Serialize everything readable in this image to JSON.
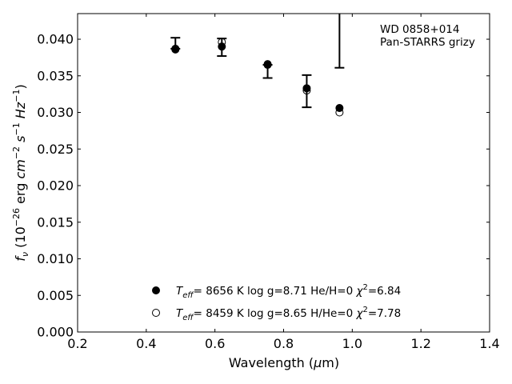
{
  "chart_data": {
    "type": "scatter",
    "annotation": [
      "WD 0858+014",
      "Pan-STARRS grizy"
    ],
    "xlabel": "Wavelength (μm)",
    "ylabel": "f_ν (10^-26 erg cm^-2 s^-1 Hz^-1)",
    "xlim": [
      0.2,
      1.4
    ],
    "ylim": [
      0.0,
      0.0435
    ],
    "xticks": [
      "0.2",
      "0.4",
      "0.6",
      "0.8",
      "1.0",
      "1.2",
      "1.4"
    ],
    "yticks": [
      "0.000",
      "0.005",
      "0.010",
      "0.015",
      "0.020",
      "0.025",
      "0.030",
      "0.035",
      "0.040"
    ],
    "grid": false,
    "legend_position": "bottom-center",
    "observed": {
      "x": [
        0.4849,
        0.6201,
        0.7535,
        0.8674,
        0.9628
      ],
      "y": [
        0.0387,
        0.039,
        0.0364,
        0.0329,
        0.03
      ],
      "err_low": [
        0.0387,
        0.0377,
        0.0347,
        0.0307,
        0.0361
      ],
      "err_high": [
        0.0402,
        0.0401,
        0.0365,
        0.0351,
        0.0435
      ]
    },
    "series": [
      {
        "name": "T_eff= 8656 K log g=8.71 He/H=0 χ²=6.84",
        "marker": "filled",
        "x": [
          0.4849,
          0.6201,
          0.7535,
          0.8674,
          0.9628
        ],
        "y": [
          0.0386,
          0.039,
          0.0365,
          0.0333,
          0.0306
        ]
      },
      {
        "name": "T_eff= 8459 K log g=8.65 H/He=0 χ²=7.78",
        "marker": "open",
        "x": [
          0.4849,
          0.6201,
          0.7535,
          0.8674,
          0.9628
        ],
        "y": [
          0.0387,
          0.0396,
          0.0366,
          0.033,
          0.03
        ]
      }
    ]
  }
}
